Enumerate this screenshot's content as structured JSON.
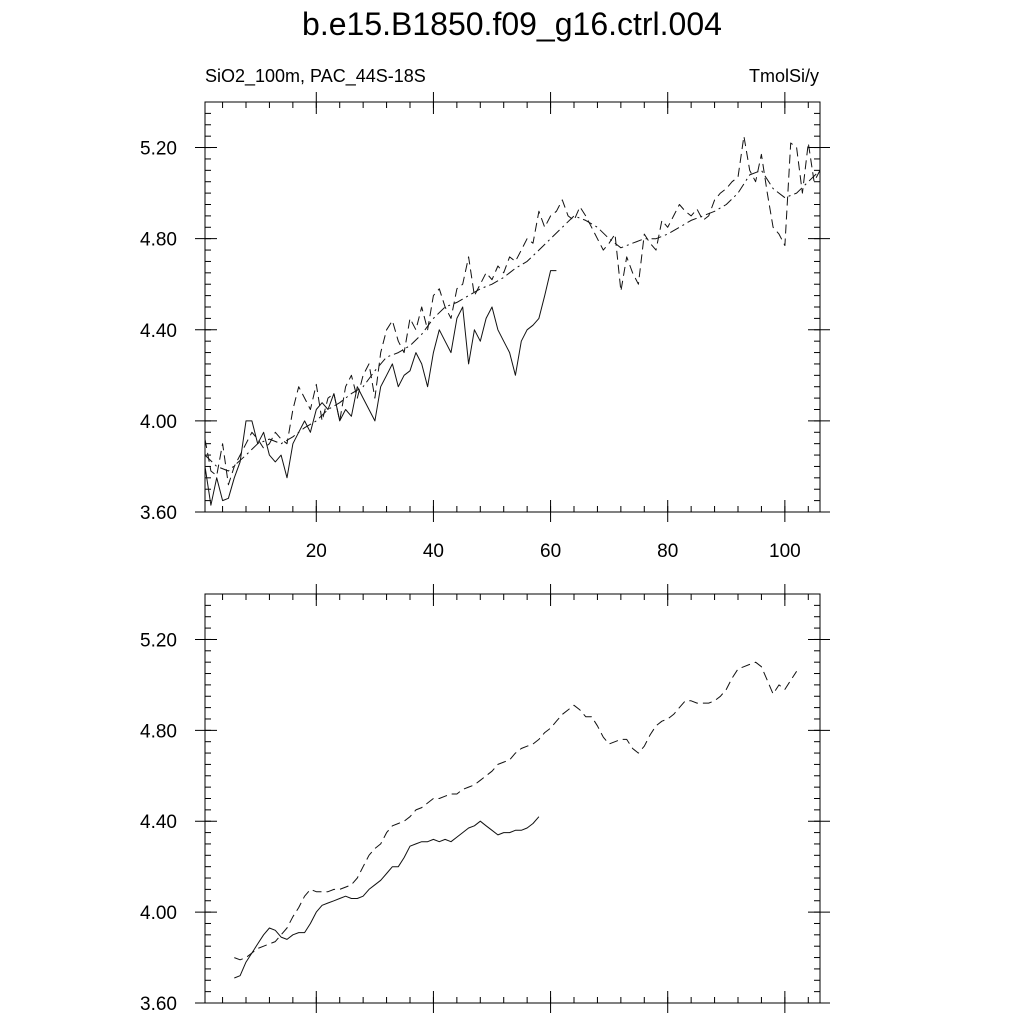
{
  "title": "b.e15.B1850.f09_g16.ctrl.004",
  "chart_data": [
    {
      "type": "line",
      "left_label": "SiO2_100m, PAC_44S-18S",
      "right_label": "TmolSi/y",
      "xlim": [
        1,
        106
      ],
      "ylim": [
        3.6,
        5.4
      ],
      "xticks": [
        20,
        40,
        60,
        80,
        100
      ],
      "xtick_labels": [
        "20",
        "40",
        "60",
        "80",
        "100"
      ],
      "yticks": [
        3.6,
        4.0,
        4.4,
        4.8,
        5.2
      ],
      "ytick_labels": [
        "3.60",
        "4.00",
        "4.40",
        "4.80",
        "5.20"
      ],
      "series": [
        {
          "style": "solid",
          "x": [
            1,
            2,
            3,
            4,
            5,
            6,
            7,
            8,
            9,
            10,
            11,
            12,
            13,
            14,
            15,
            16,
            17,
            18,
            19,
            20,
            21,
            22,
            23,
            24,
            25,
            26,
            27,
            28,
            29,
            30,
            31,
            32,
            33,
            34,
            35,
            36,
            37,
            38,
            39,
            40,
            41,
            42,
            43,
            44,
            45,
            46,
            47,
            48,
            49,
            50,
            51,
            52,
            53,
            54,
            55,
            56,
            57,
            58,
            59,
            60,
            61
          ],
          "values": [
            3.8,
            3.63,
            3.75,
            3.65,
            3.66,
            3.75,
            3.82,
            4.0,
            4.0,
            3.9,
            3.95,
            3.85,
            3.82,
            3.85,
            3.75,
            3.9,
            3.95,
            4.0,
            3.95,
            4.05,
            4.08,
            4.05,
            4.12,
            4.0,
            4.05,
            4.02,
            4.15,
            4.1,
            4.05,
            4.0,
            4.15,
            4.2,
            4.25,
            4.15,
            4.2,
            4.22,
            4.3,
            4.25,
            4.15,
            4.3,
            4.4,
            4.35,
            4.3,
            4.45,
            4.5,
            4.25,
            4.4,
            4.35,
            4.45,
            4.5,
            4.4,
            4.35,
            4.3,
            4.2,
            4.35,
            4.4,
            4.42,
            4.45,
            4.55,
            4.66,
            4.66
          ]
        },
        {
          "style": "dashed",
          "x": [
            1,
            2,
            3,
            4,
            5,
            6,
            7,
            8,
            9,
            10,
            11,
            12,
            13,
            14,
            15,
            16,
            17,
            18,
            19,
            20,
            21,
            22,
            23,
            24,
            25,
            26,
            27,
            28,
            29,
            30,
            31,
            32,
            33,
            34,
            35,
            36,
            37,
            38,
            39,
            40,
            41,
            42,
            43,
            44,
            45,
            46,
            47,
            48,
            49,
            50,
            51,
            52,
            53,
            54,
            55,
            56,
            57,
            58,
            59,
            60,
            61,
            62,
            63,
            64,
            65,
            66,
            67,
            68,
            69,
            70,
            71,
            72,
            73,
            74,
            75,
            76,
            77,
            78,
            79,
            80,
            81,
            82,
            83,
            84,
            85,
            86,
            87,
            88,
            89,
            90,
            91,
            92,
            93,
            94,
            95,
            96,
            97,
            98,
            99,
            100,
            101,
            102,
            103,
            104,
            105,
            106
          ],
          "values": [
            3.92,
            3.78,
            3.76,
            3.9,
            3.72,
            3.8,
            3.85,
            3.9,
            3.95,
            3.92,
            3.88,
            3.9,
            3.95,
            3.92,
            3.9,
            4.05,
            4.15,
            4.1,
            4.05,
            4.16,
            4.0,
            4.1,
            4.12,
            4.0,
            4.15,
            4.2,
            4.1,
            4.2,
            4.25,
            4.1,
            4.3,
            4.4,
            4.44,
            4.35,
            4.3,
            4.45,
            4.4,
            4.5,
            4.4,
            4.55,
            4.58,
            4.5,
            4.45,
            4.58,
            4.6,
            4.72,
            4.55,
            4.6,
            4.65,
            4.62,
            4.68,
            4.65,
            4.72,
            4.7,
            4.75,
            4.8,
            4.78,
            4.92,
            4.85,
            4.9,
            4.92,
            4.97,
            4.9,
            4.88,
            4.94,
            4.9,
            4.85,
            4.8,
            4.75,
            4.78,
            4.82,
            4.57,
            4.72,
            4.65,
            4.6,
            4.82,
            4.78,
            4.75,
            4.88,
            4.85,
            4.9,
            4.95,
            4.92,
            4.9,
            4.93,
            4.88,
            4.9,
            4.97,
            5.0,
            5.02,
            5.05,
            5.07,
            5.25,
            5.1,
            5.05,
            5.17,
            5.0,
            4.85,
            4.82,
            4.77,
            5.22,
            5.2,
            5.0,
            5.22,
            5.05,
            5.1
          ]
        },
        {
          "style": "dashdot",
          "x": [
            1,
            3,
            5,
            8,
            10,
            12,
            14,
            16,
            18,
            20,
            22,
            24,
            26,
            28,
            30,
            32,
            34,
            36,
            38,
            40,
            42,
            44,
            46,
            48,
            50,
            52,
            54,
            56,
            58,
            60,
            62,
            64,
            66,
            68,
            70,
            72,
            74,
            76,
            78,
            80,
            82,
            84,
            86,
            88,
            90,
            92,
            94,
            96,
            98,
            100,
            102,
            104,
            106
          ],
          "values": [
            3.85,
            3.8,
            3.78,
            3.85,
            3.9,
            3.92,
            3.9,
            3.93,
            3.97,
            4.0,
            4.05,
            4.08,
            4.12,
            4.15,
            4.22,
            4.28,
            4.3,
            4.33,
            4.38,
            4.45,
            4.5,
            4.52,
            4.55,
            4.58,
            4.6,
            4.63,
            4.67,
            4.7,
            4.75,
            4.8,
            4.85,
            4.9,
            4.88,
            4.85,
            4.8,
            4.76,
            4.78,
            4.8,
            4.8,
            4.82,
            4.85,
            4.88,
            4.9,
            4.92,
            4.95,
            5.0,
            5.08,
            5.1,
            5.02,
            4.98,
            5.0,
            5.05,
            5.1
          ]
        }
      ]
    },
    {
      "type": "line",
      "xlim": [
        1,
        106
      ],
      "ylim": [
        3.6,
        5.4
      ],
      "xticks": [
        20,
        40,
        60,
        80,
        100
      ],
      "yticks": [
        3.6,
        4.0,
        4.4,
        4.8,
        5.2
      ],
      "ytick_labels": [
        "3.60",
        "4.00",
        "4.40",
        "4.80",
        "5.20"
      ],
      "series": [
        {
          "style": "solid",
          "x": [
            6,
            7,
            8,
            9,
            10,
            11,
            12,
            13,
            14,
            15,
            16,
            17,
            18,
            19,
            20,
            21,
            22,
            23,
            24,
            25,
            26,
            27,
            28,
            29,
            30,
            31,
            32,
            33,
            34,
            35,
            36,
            37,
            38,
            39,
            40,
            41,
            42,
            43,
            44,
            45,
            46,
            47,
            48,
            49,
            50,
            51,
            52,
            53,
            54,
            55,
            56,
            57,
            58
          ],
          "values": [
            3.71,
            3.72,
            3.78,
            3.82,
            3.86,
            3.9,
            3.93,
            3.92,
            3.89,
            3.88,
            3.9,
            3.91,
            3.91,
            3.95,
            4.0,
            4.03,
            4.04,
            4.05,
            4.06,
            4.07,
            4.06,
            4.06,
            4.07,
            4.1,
            4.12,
            4.14,
            4.17,
            4.2,
            4.2,
            4.24,
            4.29,
            4.3,
            4.31,
            4.31,
            4.32,
            4.31,
            4.32,
            4.31,
            4.33,
            4.35,
            4.37,
            4.38,
            4.4,
            4.38,
            4.36,
            4.34,
            4.35,
            4.35,
            4.36,
            4.36,
            4.37,
            4.39,
            4.42
          ]
        },
        {
          "style": "dashed",
          "x": [
            6,
            7,
            8,
            9,
            10,
            11,
            12,
            13,
            14,
            15,
            16,
            17,
            18,
            19,
            20,
            21,
            22,
            23,
            24,
            25,
            26,
            27,
            28,
            29,
            30,
            31,
            32,
            33,
            34,
            35,
            36,
            37,
            38,
            39,
            40,
            41,
            42,
            43,
            44,
            45,
            46,
            47,
            48,
            49,
            50,
            51,
            52,
            53,
            54,
            55,
            56,
            57,
            58,
            59,
            60,
            61,
            62,
            63,
            64,
            65,
            66,
            67,
            68,
            69,
            70,
            71,
            72,
            73,
            74,
            75,
            76,
            77,
            78,
            79,
            80,
            81,
            82,
            83,
            84,
            85,
            86,
            87,
            88,
            89,
            90,
            91,
            92,
            93,
            94,
            95,
            96,
            97,
            98,
            99,
            100,
            101,
            102
          ],
          "values": [
            3.8,
            3.79,
            3.8,
            3.82,
            3.84,
            3.85,
            3.86,
            3.87,
            3.9,
            3.93,
            3.98,
            4.02,
            4.07,
            4.1,
            4.09,
            4.09,
            4.09,
            4.1,
            4.1,
            4.11,
            4.12,
            4.15,
            4.2,
            4.25,
            4.28,
            4.3,
            4.35,
            4.38,
            4.39,
            4.4,
            4.42,
            4.45,
            4.46,
            4.48,
            4.5,
            4.5,
            4.51,
            4.52,
            4.52,
            4.54,
            4.55,
            4.56,
            4.58,
            4.6,
            4.62,
            4.65,
            4.66,
            4.67,
            4.7,
            4.72,
            4.73,
            4.74,
            4.76,
            4.79,
            4.81,
            4.84,
            4.87,
            4.89,
            4.91,
            4.89,
            4.86,
            4.86,
            4.82,
            4.77,
            4.74,
            4.75,
            4.76,
            4.76,
            4.72,
            4.7,
            4.73,
            4.78,
            4.82,
            4.84,
            4.85,
            4.87,
            4.9,
            4.93,
            4.93,
            4.92,
            4.92,
            4.92,
            4.93,
            4.95,
            4.98,
            5.03,
            5.07,
            5.08,
            5.09,
            5.1,
            5.08,
            5.02,
            4.96,
            5.0,
            4.98,
            5.02,
            5.06
          ]
        }
      ]
    }
  ]
}
